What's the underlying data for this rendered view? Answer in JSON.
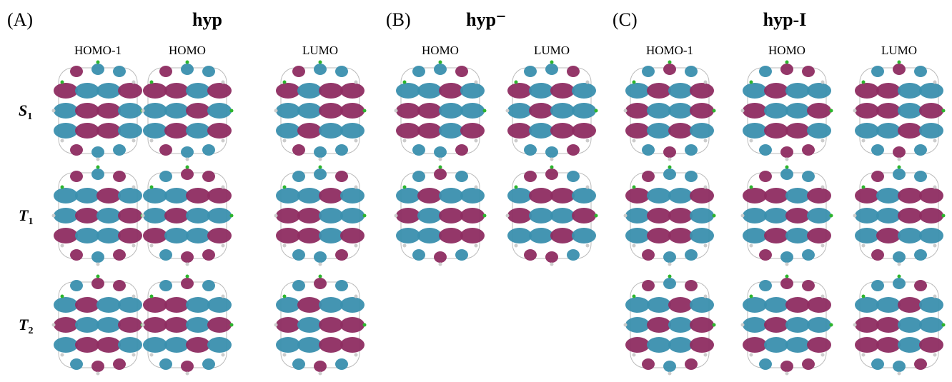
{
  "panels": [
    {
      "label": "(A)",
      "title": "hyp",
      "columns": [
        "HOMO-1",
        "HOMO",
        "LUMO"
      ]
    },
    {
      "label": "(B)",
      "title": "hyp⁻",
      "columns": [
        "HOMO",
        "LUMO"
      ]
    },
    {
      "label": "(C)",
      "title": "hyp-I",
      "columns": [
        "HOMO-1",
        "HOMO",
        "LUMO"
      ]
    }
  ],
  "rows": [
    {
      "symbol": "S",
      "subscript": "1"
    },
    {
      "symbol": "T",
      "subscript": "1"
    },
    {
      "symbol": "T",
      "subscript": "2"
    }
  ]
}
